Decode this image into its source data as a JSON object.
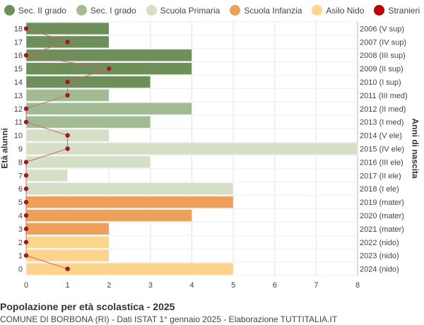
{
  "chart_data": {
    "type": "bar",
    "orientation": "horizontal",
    "title": "Popolazione per età scolastica - 2025",
    "subtitle": "COMUNE DI BORBONA (RI) - Dati ISTAT 1° gennaio 2025 - Elaborazione TUTTITALIA.IT",
    "ylabel_left": "Età alunni",
    "ylabel_right": "Anni di nascita",
    "xlim": [
      0,
      8
    ],
    "x_ticks": [
      0,
      1,
      2,
      3,
      4,
      5,
      6,
      7,
      8
    ],
    "grid": true,
    "legend_position": "top",
    "legend": [
      {
        "name": "Sec. II grado",
        "color": "#6e8f5a"
      },
      {
        "name": "Sec. I grado",
        "color": "#a3bb93"
      },
      {
        "name": "Scuola Primaria",
        "color": "#d4dfc6"
      },
      {
        "name": "Scuola Infanzia",
        "color": "#eda05a"
      },
      {
        "name": "Asilo Nido",
        "color": "#fdd48c"
      },
      {
        "name": "Stranieri",
        "color": "#c00000"
      }
    ],
    "stranieri_line_color": "#c76b6b",
    "stranieri_point_color": "#9b1c1c",
    "rows": [
      {
        "age": "18",
        "birth": "2006 (V sup)",
        "value": 2,
        "stranieri": 0,
        "group": 0
      },
      {
        "age": "17",
        "birth": "2007 (IV sup)",
        "value": 2,
        "stranieri": 1,
        "group": 0
      },
      {
        "age": "16",
        "birth": "2008 (III sup)",
        "value": 4,
        "stranieri": 0,
        "group": 0
      },
      {
        "age": "15",
        "birth": "2009 (II sup)",
        "value": 4,
        "stranieri": 2,
        "group": 0
      },
      {
        "age": "14",
        "birth": "2010 (I sup)",
        "value": 3,
        "stranieri": 1,
        "group": 0
      },
      {
        "age": "13",
        "birth": "2011 (III med)",
        "value": 2,
        "stranieri": 1,
        "group": 1
      },
      {
        "age": "12",
        "birth": "2012 (II med)",
        "value": 4,
        "stranieri": 0,
        "group": 1
      },
      {
        "age": "11",
        "birth": "2013 (I med)",
        "value": 3,
        "stranieri": 0,
        "group": 1
      },
      {
        "age": "10",
        "birth": "2014 (V ele)",
        "value": 2,
        "stranieri": 1,
        "group": 2
      },
      {
        "age": "9",
        "birth": "2015 (IV ele)",
        "value": 8,
        "stranieri": 1,
        "group": 2
      },
      {
        "age": "8",
        "birth": "2016 (III ele)",
        "value": 3,
        "stranieri": 0,
        "group": 2
      },
      {
        "age": "7",
        "birth": "2017 (II ele)",
        "value": 1,
        "stranieri": 0,
        "group": 2
      },
      {
        "age": "6",
        "birth": "2018 (I ele)",
        "value": 5,
        "stranieri": 0,
        "group": 2
      },
      {
        "age": "5",
        "birth": "2019 (mater)",
        "value": 5,
        "stranieri": 0,
        "group": 3
      },
      {
        "age": "4",
        "birth": "2020 (mater)",
        "value": 4,
        "stranieri": 0,
        "group": 3
      },
      {
        "age": "3",
        "birth": "2021 (mater)",
        "value": 2,
        "stranieri": 0,
        "group": 3
      },
      {
        "age": "2",
        "birth": "2022 (nido)",
        "value": 2,
        "stranieri": 0,
        "group": 4
      },
      {
        "age": "1",
        "birth": "2023 (nido)",
        "value": 2,
        "stranieri": 0,
        "group": 4
      },
      {
        "age": "0",
        "birth": "2024 (nido)",
        "value": 5,
        "stranieri": 1,
        "group": 4
      }
    ]
  }
}
